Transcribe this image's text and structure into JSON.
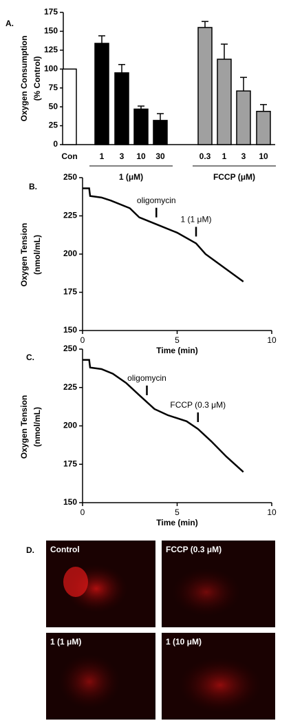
{
  "chart_data": [
    {
      "type": "bar",
      "panel": "A.",
      "ylabel": [
        "Oxygen Consumption",
        "(% Control)"
      ],
      "categories": [
        "Con",
        "1",
        "3",
        "10",
        "30",
        "0.3",
        "1",
        "3",
        "10"
      ],
      "values": [
        100,
        134,
        95,
        47,
        32,
        155,
        113,
        71,
        44
      ],
      "errors": [
        null,
        10,
        11,
        4,
        9,
        8,
        20,
        18,
        9
      ],
      "colors": [
        "#ffffff",
        "#000000",
        "#000000",
        "#000000",
        "#000000",
        "#a0a0a0",
        "#a0a0a0",
        "#a0a0a0",
        "#a0a0a0"
      ],
      "groups": [
        {
          "label": "1 (μM)",
          "from": 1,
          "to": 4
        },
        {
          "label": "FCCP (μM)",
          "from": 5,
          "to": 8
        }
      ],
      "ylim": [
        0,
        175
      ],
      "yticks": [
        0,
        25,
        50,
        75,
        100,
        125,
        150,
        175
      ]
    },
    {
      "type": "line",
      "panel": "B.",
      "xlabel": "Time (min)",
      "ylabel": [
        "Oxygen Tension",
        "(nmol/mL)"
      ],
      "x": [
        0,
        0.35,
        0.4,
        1,
        1.5,
        2.5,
        3,
        4,
        5,
        6,
        6.5,
        7.5,
        8.5
      ],
      "values": [
        243,
        243,
        238,
        237,
        235,
        230,
        224,
        219,
        214,
        207,
        200,
        191,
        182
      ],
      "color": "#000000",
      "annotations": [
        {
          "text": "oligomycin",
          "x": 3.9
        },
        {
          "text": "1 (1 μM)",
          "x": 6
        }
      ],
      "xlim": [
        0,
        10
      ],
      "xticks": [
        0,
        5,
        10
      ],
      "ylim": [
        150,
        250
      ],
      "yticks": [
        150,
        175,
        200,
        225,
        250
      ]
    },
    {
      "type": "line",
      "panel": "C.",
      "xlabel": "Time (min)",
      "ylabel": [
        "Oxygen Tension",
        "(nmol/mL)"
      ],
      "x": [
        0,
        0.35,
        0.4,
        1,
        1.6,
        2.3,
        3,
        3.8,
        4.5,
        5.5,
        6.1,
        6.8,
        7.6,
        8.5
      ],
      "values": [
        243,
        243,
        238,
        237,
        234,
        228,
        220,
        211,
        207,
        203,
        198,
        190,
        180,
        170
      ],
      "color": "#000000",
      "annotations": [
        {
          "text": "oligomycin",
          "x": 3.4
        },
        {
          "text": "FCCP (0.3 μM)",
          "x": 6.1
        }
      ],
      "xlim": [
        0,
        10
      ],
      "xticks": [
        0,
        5,
        10
      ],
      "ylim": [
        150,
        250
      ],
      "yticks": [
        150,
        175,
        200,
        225,
        250
      ]
    }
  ],
  "panel_d": {
    "label": "D.",
    "images": [
      "Control",
      "FCCP (0.3 μM)",
      "1 (1 μM)",
      "1 (10 μM)"
    ]
  }
}
